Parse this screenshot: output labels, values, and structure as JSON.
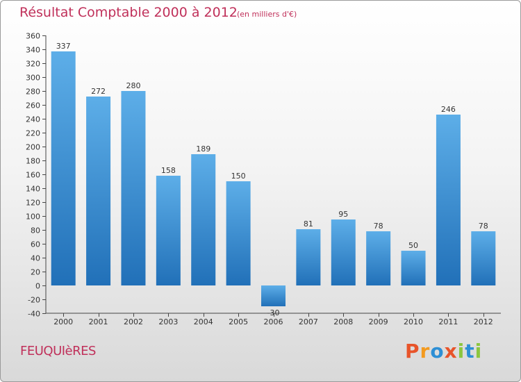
{
  "title": "Résultat Comptable 2000 à 2012",
  "subtitle": "(en milliers d'€)",
  "commune": "FEUQUIèRES",
  "logo": {
    "text": "Proxiti",
    "letters": [
      "P",
      "r",
      "o",
      "x",
      "i",
      "t",
      "i"
    ],
    "colors": [
      "#e8542a",
      "#f39a1f",
      "#2d8fd5",
      "#e8542a",
      "#8cc63f",
      "#2d8fd5",
      "#8cc63f"
    ]
  },
  "colors": {
    "bar_top": "#5daee8",
    "bar_bottom": "#2170b8",
    "title": "#c0305a"
  },
  "chart_data": {
    "type": "bar",
    "title": "Résultat Comptable 2000 à 2012",
    "ylabel": "en milliers d'€",
    "xlabel": "",
    "categories": [
      "2000",
      "2001",
      "2002",
      "2003",
      "2004",
      "2005",
      "2006",
      "2007",
      "2008",
      "2009",
      "2010",
      "2011",
      "2012"
    ],
    "values": [
      337,
      272,
      280,
      158,
      189,
      150,
      -30,
      81,
      95,
      78,
      50,
      246,
      78
    ],
    "ylim": [
      -40,
      360
    ],
    "ytick_step": 20,
    "grid": false,
    "legend": "none"
  }
}
